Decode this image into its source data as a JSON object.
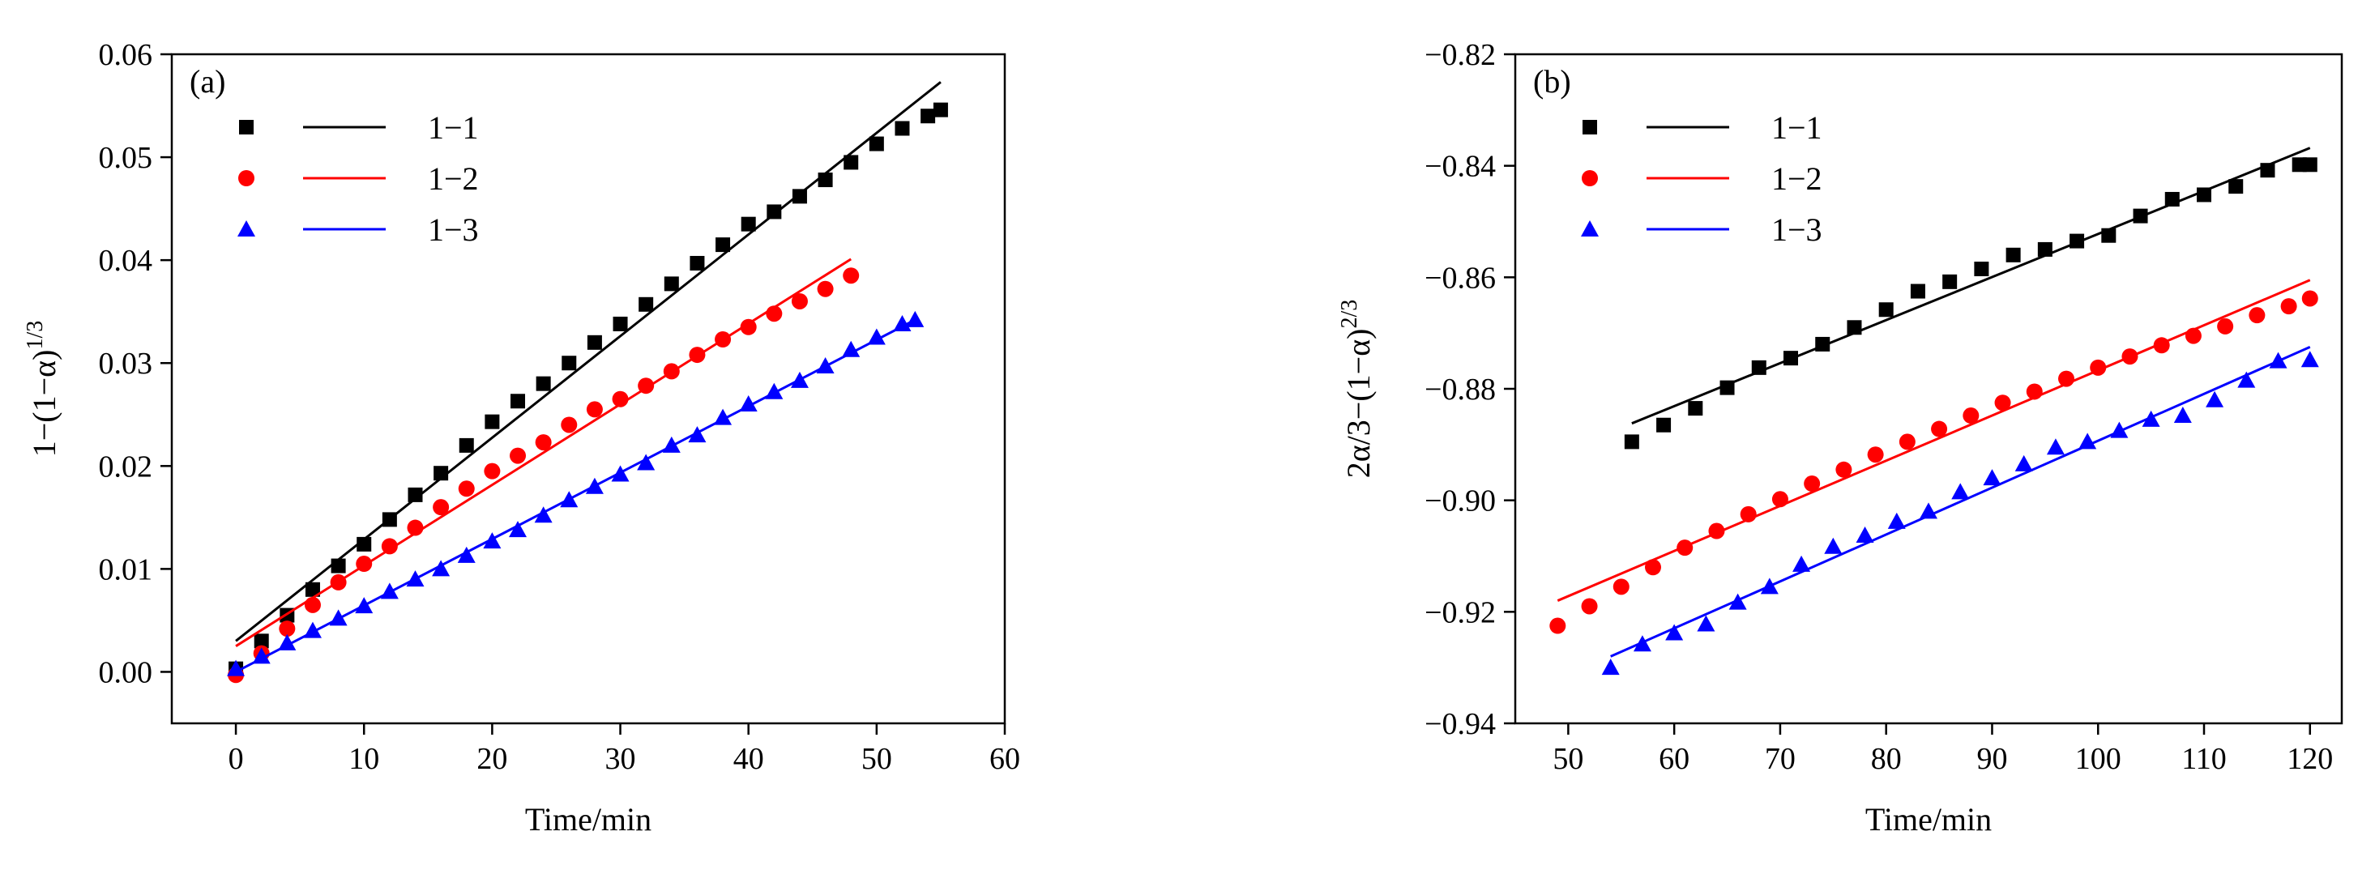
{
  "chart_data": [
    {
      "type": "scatter",
      "panel_label": "(a)",
      "xlabel": "Time/min",
      "ylabel_main": "1−(1−α)",
      "ylabel_sup": "1/3",
      "xlim": [
        -5,
        60
      ],
      "ylim": [
        -0.005,
        0.06
      ],
      "xticks": [
        0,
        10,
        20,
        30,
        40,
        50,
        60
      ],
      "xtick_labels": [
        "0",
        "10",
        "20",
        "30",
        "40",
        "50",
        "60"
      ],
      "yticks": [
        0,
        0.01,
        0.02,
        0.03,
        0.04,
        0.05,
        0.06
      ],
      "ytick_labels": [
        "0.00",
        "0.01",
        "0.02",
        "0.03",
        "0.04",
        "0.05",
        "0.06"
      ],
      "legend_position": "top-left",
      "series": [
        {
          "name": "1−1",
          "color": "#000000",
          "marker": "square",
          "x": [
            0,
            2,
            4,
            6,
            8,
            10,
            12,
            14,
            16,
            18,
            20,
            22,
            24,
            26,
            28,
            30,
            32,
            34,
            36,
            38,
            40,
            42,
            44,
            46,
            48,
            50,
            52,
            54,
            55
          ],
          "y": [
            0.0003,
            0.003,
            0.0055,
            0.008,
            0.0103,
            0.0124,
            0.0148,
            0.0172,
            0.0193,
            0.022,
            0.0243,
            0.0263,
            0.028,
            0.03,
            0.032,
            0.0338,
            0.0357,
            0.0377,
            0.0397,
            0.0415,
            0.0435,
            0.0447,
            0.0462,
            0.0478,
            0.0495,
            0.0513,
            0.0528,
            0.054,
            0.0546
          ],
          "fit_x": [
            0,
            55
          ],
          "fit_y": [
            0.003,
            0.0573
          ]
        },
        {
          "name": "1−2",
          "color": "#ff0000",
          "marker": "circle",
          "x": [
            0,
            2,
            4,
            6,
            8,
            10,
            12,
            14,
            16,
            18,
            20,
            22,
            24,
            26,
            28,
            30,
            32,
            34,
            36,
            38,
            40,
            42,
            44,
            46,
            48
          ],
          "y": [
            -0.0003,
            0.0018,
            0.0042,
            0.0065,
            0.0087,
            0.0105,
            0.0122,
            0.014,
            0.016,
            0.0178,
            0.0195,
            0.021,
            0.0223,
            0.024,
            0.0255,
            0.0265,
            0.0278,
            0.0292,
            0.0308,
            0.0323,
            0.0335,
            0.0348,
            0.036,
            0.0372,
            0.0385
          ],
          "fit_x": [
            0,
            48
          ],
          "fit_y": [
            0.0025,
            0.0401
          ]
        },
        {
          "name": "1−3",
          "color": "#0000ff",
          "marker": "triangle",
          "x": [
            0,
            2,
            4,
            6,
            8,
            10,
            12,
            14,
            16,
            18,
            20,
            22,
            24,
            26,
            28,
            30,
            32,
            34,
            36,
            38,
            40,
            42,
            44,
            46,
            48,
            50,
            52,
            53
          ],
          "y": [
            0.0003,
            0.0015,
            0.0028,
            0.004,
            0.0052,
            0.0064,
            0.0078,
            0.009,
            0.01,
            0.0113,
            0.0127,
            0.0138,
            0.0152,
            0.0167,
            0.018,
            0.0192,
            0.0203,
            0.022,
            0.023,
            0.0247,
            0.026,
            0.0272,
            0.0283,
            0.0297,
            0.0313,
            0.0325,
            0.0338,
            0.0342
          ],
          "fit_x": [
            0,
            53
          ],
          "fit_y": [
            0.0,
            0.0342
          ]
        }
      ]
    },
    {
      "type": "scatter",
      "panel_label": "(b)",
      "xlabel": "Time/min",
      "ylabel_main": "2α/3−(1−α)",
      "ylabel_sup": "2/3",
      "xlim": [
        45,
        123
      ],
      "ylim": [
        -0.94,
        -0.82
      ],
      "xticks": [
        50,
        60,
        70,
        80,
        90,
        100,
        110,
        120
      ],
      "xtick_labels": [
        "50",
        "60",
        "70",
        "80",
        "90",
        "100",
        "110",
        "120"
      ],
      "yticks": [
        -0.94,
        -0.92,
        -0.9,
        -0.88,
        -0.86,
        -0.84,
        -0.82
      ],
      "ytick_labels": [
        "−0.94",
        "−0.92",
        "−0.90",
        "−0.88",
        "−0.86",
        "−0.84",
        "−0.82"
      ],
      "legend_position": "top-left",
      "series": [
        {
          "name": "1−1",
          "color": "#000000",
          "marker": "square",
          "x": [
            56,
            59,
            62,
            65,
            68,
            71,
            74,
            77,
            80,
            83,
            86,
            89,
            92,
            95,
            98,
            101,
            104,
            107,
            110,
            113,
            116,
            119,
            120
          ],
          "y": [
            -0.8895,
            -0.8865,
            -0.8835,
            -0.8798,
            -0.8762,
            -0.8745,
            -0.872,
            -0.869,
            -0.8658,
            -0.8625,
            -0.8608,
            -0.8585,
            -0.856,
            -0.855,
            -0.8535,
            -0.8525,
            -0.849,
            -0.846,
            -0.8452,
            -0.8437,
            -0.8408,
            -0.8398,
            -0.8398
          ],
          "fit_x": [
            56,
            120
          ],
          "fit_y": [
            -0.8862,
            -0.8368
          ]
        },
        {
          "name": "1−2",
          "color": "#ff0000",
          "marker": "circle",
          "x": [
            49,
            52,
            55,
            58,
            61,
            64,
            67,
            70,
            73,
            76,
            79,
            82,
            85,
            88,
            91,
            94,
            97,
            100,
            103,
            106,
            109,
            112,
            115,
            118,
            120
          ],
          "y": [
            -0.9225,
            -0.919,
            -0.9155,
            -0.912,
            -0.9085,
            -0.9055,
            -0.9025,
            -0.8998,
            -0.897,
            -0.8945,
            -0.8918,
            -0.8895,
            -0.8872,
            -0.8848,
            -0.8825,
            -0.8805,
            -0.8782,
            -0.8762,
            -0.8742,
            -0.8722,
            -0.8705,
            -0.8688,
            -0.8668,
            -0.8652,
            -0.8638
          ],
          "fit_x": [
            49,
            120
          ],
          "fit_y": [
            -0.918,
            -0.8605
          ]
        },
        {
          "name": "1−3",
          "color": "#0000ff",
          "marker": "triangle",
          "x": [
            54,
            57,
            60,
            63,
            66,
            69,
            72,
            75,
            78,
            81,
            84,
            87,
            90,
            93,
            96,
            99,
            102,
            105,
            108,
            111,
            114,
            117,
            120
          ],
          "y": [
            -0.93,
            -0.9258,
            -0.9238,
            -0.9222,
            -0.9183,
            -0.9155,
            -0.9115,
            -0.9083,
            -0.9063,
            -0.9038,
            -0.902,
            -0.8985,
            -0.896,
            -0.8935,
            -0.8905,
            -0.8895,
            -0.8875,
            -0.8855,
            -0.8848,
            -0.882,
            -0.8785,
            -0.875,
            -0.8748
          ],
          "fit_x": [
            54,
            120
          ],
          "fit_y": [
            -0.928,
            -0.8725
          ]
        }
      ]
    }
  ]
}
